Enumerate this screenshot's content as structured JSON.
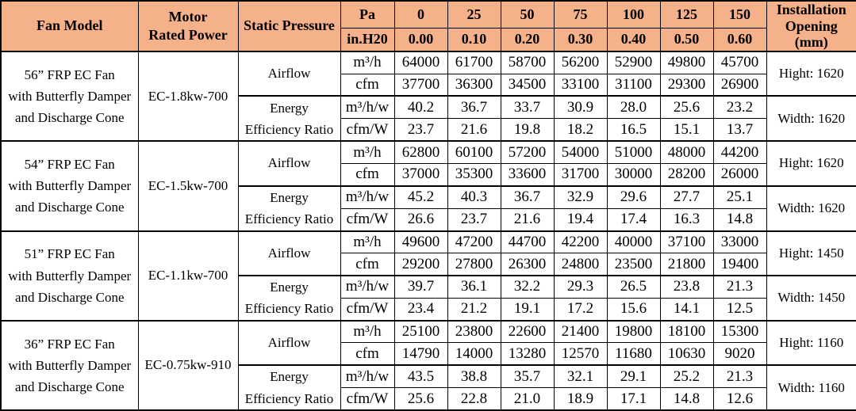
{
  "colors": {
    "header_bg": "#F5B18A",
    "border": "#000000",
    "text": "#000000",
    "body_bg": "#FFFFFF"
  },
  "header": {
    "fan_model": "Fan Model",
    "motor_lines": [
      "Motor",
      "Rated Power"
    ],
    "static_pressure": "Static Pressure",
    "unit_pa": "Pa",
    "unit_inh2o": "in.H20",
    "pa_values": [
      "0",
      "25",
      "50",
      "75",
      "100",
      "125",
      "150"
    ],
    "inh2o_values": [
      "0.00",
      "0.10",
      "0.20",
      "0.30",
      "0.40",
      "0.50",
      "0.60"
    ],
    "installation_lines": [
      "Installation",
      "Opening",
      "(mm)"
    ]
  },
  "labels": {
    "airflow": "Airflow",
    "eer_lines": [
      "Energy",
      "Efficiency Ratio"
    ],
    "unit_m3h": "m³/h",
    "unit_cfm": "cfm",
    "unit_m3hw": "m³/h/w",
    "unit_cfmw": "cfm/W"
  },
  "blocks": [
    {
      "fan_model_lines": [
        "56” FRP EC Fan",
        "with Butterfly Damper",
        "and Discharge Cone"
      ],
      "motor_rated_power": "EC-1.8kw-700",
      "airflow_m3h": [
        "64000",
        "61700",
        "58700",
        "56200",
        "52900",
        "49800",
        "45700"
      ],
      "airflow_cfm": [
        "37700",
        "36300",
        "34500",
        "33100",
        "31100",
        "29300",
        "26900"
      ],
      "eer_m3hw": [
        "40.2",
        "36.7",
        "33.7",
        "30.9",
        "28.0",
        "25.6",
        "23.2"
      ],
      "eer_cfmw": [
        "23.7",
        "21.6",
        "19.8",
        "18.2",
        "16.5",
        "15.1",
        "13.7"
      ],
      "opening_height": "Hight: 1620",
      "opening_width": "Width: 1620"
    },
    {
      "fan_model_lines": [
        "54” FRP EC Fan",
        "with Butterfly Damper",
        "and Discharge Cone"
      ],
      "motor_rated_power": "EC-1.5kw-700",
      "airflow_m3h": [
        "62800",
        "60100",
        "57200",
        "54000",
        "51000",
        "48000",
        "44200"
      ],
      "airflow_cfm": [
        "37000",
        "35300",
        "33600",
        "31700",
        "30000",
        "28200",
        "26000"
      ],
      "eer_m3hw": [
        "45.2",
        "40.3",
        "36.7",
        "32.9",
        "29.6",
        "27.7",
        "25.1"
      ],
      "eer_cfmw": [
        "26.6",
        "23.7",
        "21.6",
        "19.4",
        "17.4",
        "16.3",
        "14.8"
      ],
      "opening_height": "Hight: 1620",
      "opening_width": "Width: 1620"
    },
    {
      "fan_model_lines": [
        "51” FRP EC Fan",
        "with Butterfly Damper",
        "and Discharge Cone"
      ],
      "motor_rated_power": "EC-1.1kw-700",
      "airflow_m3h": [
        "49600",
        "47200",
        "44700",
        "42200",
        "40000",
        "37100",
        "33000"
      ],
      "airflow_cfm": [
        "29200",
        "27800",
        "26300",
        "24800",
        "23500",
        "21800",
        "19400"
      ],
      "eer_m3hw": [
        "39.7",
        "36.1",
        "32.2",
        "29.3",
        "26.5",
        "23.8",
        "21.3"
      ],
      "eer_cfmw": [
        "23.4",
        "21.2",
        "19.1",
        "17.2",
        "15.6",
        "14.1",
        "12.5"
      ],
      "opening_height": "Hight: 1450",
      "opening_width": "Width: 1450"
    },
    {
      "fan_model_lines": [
        "36” FRP EC Fan",
        "with Butterfly Damper",
        "and Discharge Cone"
      ],
      "motor_rated_power": "EC-0.75kw-910",
      "airflow_m3h": [
        "25100",
        "23800",
        "22600",
        "21400",
        "19800",
        "18100",
        "15300"
      ],
      "airflow_cfm": [
        "14790",
        "14000",
        "13280",
        "12570",
        "11680",
        "10630",
        "9020"
      ],
      "eer_m3hw": [
        "43.5",
        "38.8",
        "35.7",
        "32.1",
        "29.1",
        "25.2",
        "21.3"
      ],
      "eer_cfmw": [
        "25.6",
        "22.8",
        "21.0",
        "18.9",
        "17.1",
        "14.8",
        "12.6"
      ],
      "opening_height": "Hight: 1160",
      "opening_width": "Width: 1160"
    }
  ]
}
